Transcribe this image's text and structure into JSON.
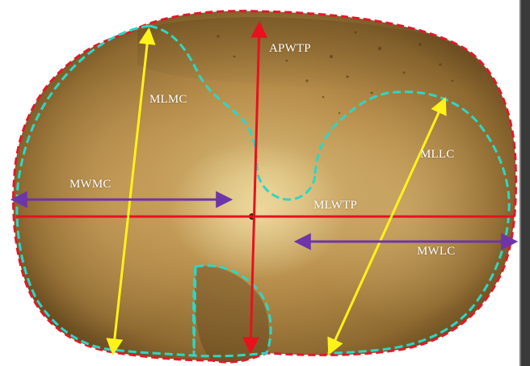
{
  "labels": {
    "apwtp": "APWTP",
    "mlmc": "MLMC",
    "mllc": "MLLC",
    "mwmc": "MWMC",
    "mlwtp": "MLWTP",
    "mwlc": "MWLC"
  },
  "colors": {
    "outline": "#e0192b",
    "condyle_outline": "#2fd6c3",
    "axis_lines": "#e8111e",
    "length_arrows": "#fff21a",
    "width_arrows": "#6e35a8",
    "bone_light": "#c9a15a",
    "bone_dark": "#6b4a1e",
    "right_edge_bar": "#3a3a3a"
  }
}
